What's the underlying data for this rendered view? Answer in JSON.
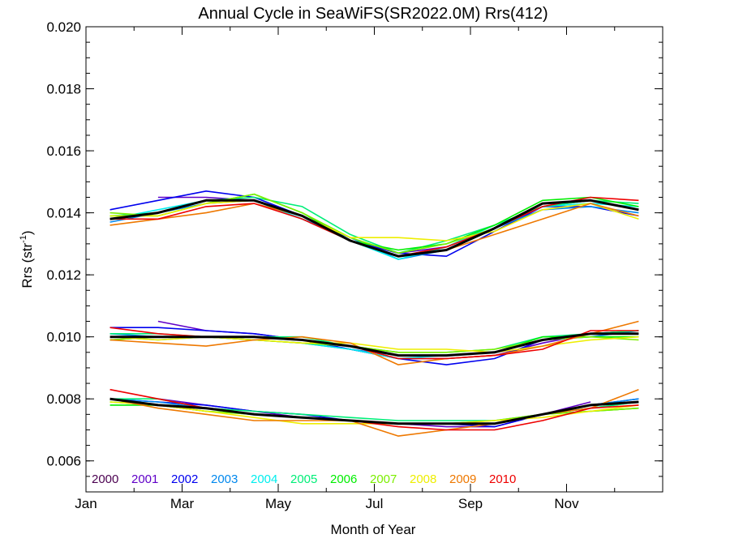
{
  "chart_data": {
    "type": "line",
    "title": "Annual Cycle in SeaWiFS(SR2022.0M) Rrs(412)",
    "xlabel": "Month of Year",
    "ylabel_main": "Rrs (str",
    "ylabel_sup": "-1",
    "ylabel_close": ")",
    "x_tick_labels": [
      "Jan",
      "Mar",
      "May",
      "Jul",
      "Sep",
      "Nov"
    ],
    "x_tick_values": [
      1,
      3,
      5,
      7,
      9,
      11
    ],
    "x_range": [
      1,
      13
    ],
    "y_range": [
      0.005,
      0.02
    ],
    "y_tick_labels": [
      "0.006",
      "0.008",
      "0.010",
      "0.012",
      "0.014",
      "0.016",
      "0.018",
      "0.020"
    ],
    "y_tick_values": [
      0.006,
      0.008,
      0.01,
      0.012,
      0.014,
      0.016,
      0.018,
      0.02
    ],
    "grid": false,
    "legend_position": "bottom-left",
    "x": [
      1.5,
      2.5,
      3.5,
      4.5,
      5.5,
      6.5,
      7.5,
      8.5,
      9.5,
      10.5,
      11.5,
      12.5
    ],
    "series": [
      {
        "name": "2000",
        "color": "#4b0050",
        "groups": [
          [
            null,
            null,
            null,
            null,
            null,
            null,
            null,
            null,
            null,
            null,
            null,
            null
          ],
          [
            null,
            null,
            null,
            null,
            null,
            null,
            null,
            null,
            null,
            null,
            null,
            null
          ],
          [
            null,
            null,
            null,
            null,
            null,
            null,
            null,
            null,
            null,
            null,
            null,
            null
          ]
        ]
      },
      {
        "name": "2001",
        "color": "#6000c8",
        "groups": [
          [
            null,
            0.0145,
            0.0145,
            0.0144,
            0.0139,
            0.0131,
            0.0127,
            0.0129,
            0.0135,
            0.0142,
            0.0144,
            null
          ],
          [
            null,
            0.0105,
            0.0102,
            0.0101,
            0.0099,
            0.0096,
            0.0093,
            0.0093,
            0.0094,
            0.0098,
            0.0101,
            null
          ],
          [
            null,
            0.008,
            0.0078,
            0.0076,
            0.0074,
            0.0073,
            0.0072,
            0.0071,
            0.0071,
            0.0075,
            0.0079,
            null
          ]
        ]
      },
      {
        "name": "2002",
        "color": "#0000ee",
        "groups": [
          [
            0.0141,
            0.0144,
            0.0147,
            0.0145,
            0.0139,
            0.0131,
            0.0127,
            0.0126,
            0.0134,
            0.0142,
            0.0142,
            0.0139
          ],
          [
            0.0103,
            0.0103,
            0.0102,
            0.0101,
            0.0099,
            0.0096,
            0.0093,
            0.0091,
            0.0093,
            0.0099,
            0.0101,
            0.0102
          ],
          [
            0.008,
            0.0079,
            0.0078,
            0.0076,
            0.0075,
            0.0073,
            0.0072,
            0.0072,
            0.0071,
            0.0075,
            0.0078,
            0.008
          ]
        ]
      },
      {
        "name": "2003",
        "color": "#0088ee",
        "groups": [
          [
            0.0137,
            0.014,
            0.0143,
            0.0144,
            0.0138,
            0.0132,
            0.0125,
            0.0128,
            0.0135,
            0.0141,
            0.0142,
            0.014
          ],
          [
            0.0101,
            0.01,
            0.01,
            0.0099,
            0.0098,
            0.0096,
            0.0094,
            0.0094,
            0.0095,
            0.0099,
            0.01,
            0.0102
          ],
          [
            0.008,
            0.0079,
            0.0077,
            0.0075,
            0.0074,
            0.0073,
            0.0072,
            0.0072,
            0.0072,
            0.0075,
            0.0078,
            0.008
          ]
        ]
      },
      {
        "name": "2004",
        "color": "#00eeee",
        "groups": [
          [
            0.0138,
            0.0141,
            0.0144,
            0.0144,
            0.0138,
            0.0131,
            0.0125,
            0.0129,
            0.0136,
            0.0142,
            0.0143,
            0.0142
          ],
          [
            0.01,
            0.0099,
            0.01,
            0.0099,
            0.0098,
            0.0096,
            0.0093,
            0.0094,
            0.0095,
            0.0099,
            0.0101,
            0.0101
          ],
          [
            0.0079,
            0.0078,
            0.0077,
            0.0075,
            0.0074,
            0.0073,
            0.0072,
            0.0072,
            0.0072,
            0.0075,
            0.0077,
            0.0079
          ]
        ]
      },
      {
        "name": "2005",
        "color": "#00ee78",
        "groups": [
          [
            0.0139,
            0.014,
            0.0144,
            0.0145,
            0.0142,
            0.0133,
            0.0127,
            0.0131,
            0.0136,
            0.0142,
            0.0144,
            0.0143
          ],
          [
            0.0101,
            0.0101,
            0.01,
            0.01,
            0.01,
            0.0097,
            0.0095,
            0.0095,
            0.0096,
            0.01,
            0.0101,
            0.0102
          ],
          [
            0.008,
            0.008,
            0.0077,
            0.0076,
            0.0075,
            0.0074,
            0.0073,
            0.0073,
            0.0073,
            0.0075,
            0.0077,
            0.0079
          ]
        ]
      },
      {
        "name": "2006",
        "color": "#00ee00",
        "groups": [
          [
            0.0139,
            0.0139,
            0.0143,
            0.0146,
            0.014,
            0.0131,
            0.0128,
            0.013,
            0.0136,
            0.0144,
            0.0145,
            0.0142
          ],
          [
            0.0099,
            0.01,
            0.01,
            0.01,
            0.0099,
            0.0097,
            0.0094,
            0.0094,
            0.0095,
            0.01,
            0.01,
            0.01
          ],
          [
            0.0078,
            0.0078,
            0.0076,
            0.0075,
            0.0074,
            0.0073,
            0.0072,
            0.0072,
            0.0072,
            0.0075,
            0.0076,
            0.0077
          ]
        ]
      },
      {
        "name": "2007",
        "color": "#7cee00",
        "groups": [
          [
            0.014,
            0.0139,
            0.0143,
            0.0146,
            0.014,
            0.0132,
            0.0127,
            0.013,
            0.0135,
            0.0143,
            0.0144,
            0.0141
          ],
          [
            0.0099,
            0.01,
            0.01,
            0.0099,
            0.0098,
            0.0097,
            0.0095,
            0.0095,
            0.0096,
            0.0099,
            0.01,
            0.0099
          ],
          [
            0.0079,
            0.0078,
            0.0076,
            0.0075,
            0.0074,
            0.0073,
            0.0072,
            0.0072,
            0.0073,
            0.0075,
            0.0076,
            0.0077
          ]
        ]
      },
      {
        "name": "2008",
        "color": "#eeee00",
        "groups": [
          [
            0.0139,
            0.0139,
            0.0143,
            0.0144,
            0.0139,
            0.0132,
            0.0132,
            0.0131,
            0.0134,
            0.0141,
            0.0143,
            0.0138
          ],
          [
            0.01,
            0.0099,
            0.01,
            0.0099,
            0.0098,
            0.0098,
            0.0096,
            0.0096,
            0.0095,
            0.0097,
            0.0099,
            0.01
          ],
          [
            0.0079,
            0.0078,
            0.0076,
            0.0074,
            0.0072,
            0.0072,
            0.0072,
            0.0072,
            0.0073,
            0.0074,
            0.0076,
            0.0078
          ]
        ]
      },
      {
        "name": "2009",
        "color": "#ee7800",
        "groups": [
          [
            0.0136,
            0.0138,
            0.014,
            0.0143,
            0.0139,
            0.0131,
            0.0126,
            0.0128,
            0.0133,
            0.0138,
            0.0143,
            0.0139
          ],
          [
            0.0099,
            0.0098,
            0.0097,
            0.0099,
            0.01,
            0.0098,
            0.0091,
            0.0093,
            0.0094,
            0.0097,
            0.0101,
            0.0105
          ],
          [
            0.008,
            0.0077,
            0.0075,
            0.0073,
            0.0073,
            0.0073,
            0.0068,
            0.007,
            0.0072,
            0.0075,
            0.0077,
            0.0083
          ]
        ]
      },
      {
        "name": "2010",
        "color": "#ee0000",
        "groups": [
          [
            0.0138,
            0.0138,
            0.0142,
            0.0143,
            0.0138,
            0.0131,
            0.0126,
            0.0129,
            0.0135,
            0.0142,
            0.0145,
            0.0144
          ],
          [
            0.0103,
            0.0101,
            0.01,
            0.01,
            0.0099,
            0.0097,
            0.0093,
            0.0093,
            0.0094,
            0.0096,
            0.0102,
            0.0102
          ],
          [
            0.0083,
            0.008,
            0.0077,
            0.0075,
            0.0074,
            0.0073,
            0.0071,
            0.007,
            0.007,
            0.0073,
            0.0077,
            0.0078
          ]
        ]
      },
      {
        "name": "",
        "color": "#000000",
        "groups": [
          [
            0.0138,
            0.014,
            0.0144,
            0.0144,
            0.0139,
            0.0131,
            0.0126,
            0.0128,
            0.0135,
            0.0143,
            0.0144,
            0.0141
          ],
          [
            0.01,
            0.01,
            0.01,
            0.01,
            0.0099,
            0.0097,
            0.0094,
            0.0094,
            0.0095,
            0.0099,
            0.0101,
            0.0101
          ],
          [
            0.008,
            0.0078,
            0.0077,
            0.0075,
            0.0074,
            0.0073,
            0.0072,
            0.0072,
            0.0072,
            0.0075,
            0.0078,
            0.0079
          ]
        ]
      }
    ]
  }
}
